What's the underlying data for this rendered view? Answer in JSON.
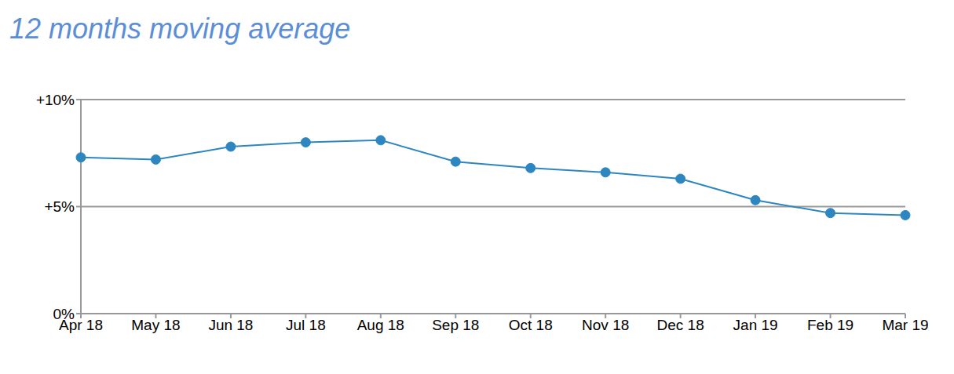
{
  "chart_data": {
    "type": "line",
    "title": "12 months moving average",
    "categories": [
      "Apr 18",
      "May 18",
      "Jun 18",
      "Jul 18",
      "Aug 18",
      "Sep 18",
      "Oct 18",
      "Nov 18",
      "Dec 18",
      "Jan 19",
      "Feb 19",
      "Mar 19"
    ],
    "values": [
      7.3,
      7.2,
      7.8,
      8.0,
      8.1,
      7.1,
      6.8,
      6.6,
      6.3,
      5.3,
      4.7,
      4.6
    ],
    "color": "#2e86c1",
    "marker": "circle",
    "ylim": [
      0,
      10
    ],
    "yticks": [
      {
        "value": 0,
        "label": "0%"
      },
      {
        "value": 5,
        "label": "+5%"
      },
      {
        "value": 10,
        "label": "+10%"
      }
    ],
    "grid": true
  }
}
